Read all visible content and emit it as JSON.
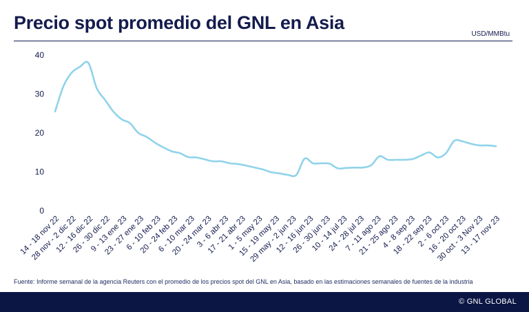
{
  "header": {
    "title": "Precio spot promedio del GNL en Asia",
    "unit": "USD/MMBtu"
  },
  "footer": {
    "source": "Fuente: Informe semanal de la agencia Reuters con el promedio de los precios spot del GNL en Asia, basado en las estimaciones semanales de fuentes de la industria",
    "brand": "© GNL GLOBAL"
  },
  "chart_data": {
    "type": "line",
    "title": "Precio spot promedio del GNL en Asia",
    "ylabel": "USD/MMBtu",
    "ylim": [
      0,
      40
    ],
    "yticks": [
      0,
      10,
      20,
      30,
      40
    ],
    "grid": false,
    "line_color": "#8fd3ea",
    "tick_labels": [
      "14 - 18 nov 22",
      "28 nov - 2 dic 22",
      "12 - 16 dic 22",
      "26 - 30 dic 22",
      "9 - 13 ene 23",
      "23 - 27 ene 23",
      "6 - 10 feb 23",
      "20 - 24 feb 23",
      "6 - 10 mar 23",
      "20 - 24 mar 23",
      "3 - 6 abr 23",
      "17 - 21 abr 23",
      "1 - 5 may 23",
      "15 - 19 may 23",
      "29 may - 2 jun 23",
      "12 - 16 jun 23",
      "26 - 30 jun 23",
      "10 - 14 jul 23",
      "24 - 28 jul 23",
      "7 - 11 ago 23",
      "21 - 25 ago 23",
      "4 - 8 sep 23",
      "18 - 22 sep 23",
      "2 - 6 oct 23",
      "16 - 20 oct 23",
      "30 oct - 3 Nov 23",
      "13 - 17 nov 23"
    ],
    "values": [
      25.5,
      32.0,
      35.5,
      37.0,
      38.0,
      31.5,
      28.5,
      25.5,
      23.5,
      22.5,
      20.0,
      19.0,
      17.5,
      16.3,
      15.3,
      14.8,
      13.8,
      13.7,
      13.2,
      12.7,
      12.7,
      12.2,
      12.0,
      11.6,
      11.1,
      10.6,
      9.9,
      9.6,
      9.2,
      9.2,
      13.4,
      12.2,
      12.2,
      12.1,
      10.9,
      11.0,
      11.1,
      11.1,
      11.7,
      14.0,
      13.1,
      13.1,
      13.1,
      13.3,
      14.2,
      15.0,
      13.7,
      14.8,
      18.0,
      17.8,
      17.2,
      16.8,
      16.8,
      16.6
    ]
  }
}
